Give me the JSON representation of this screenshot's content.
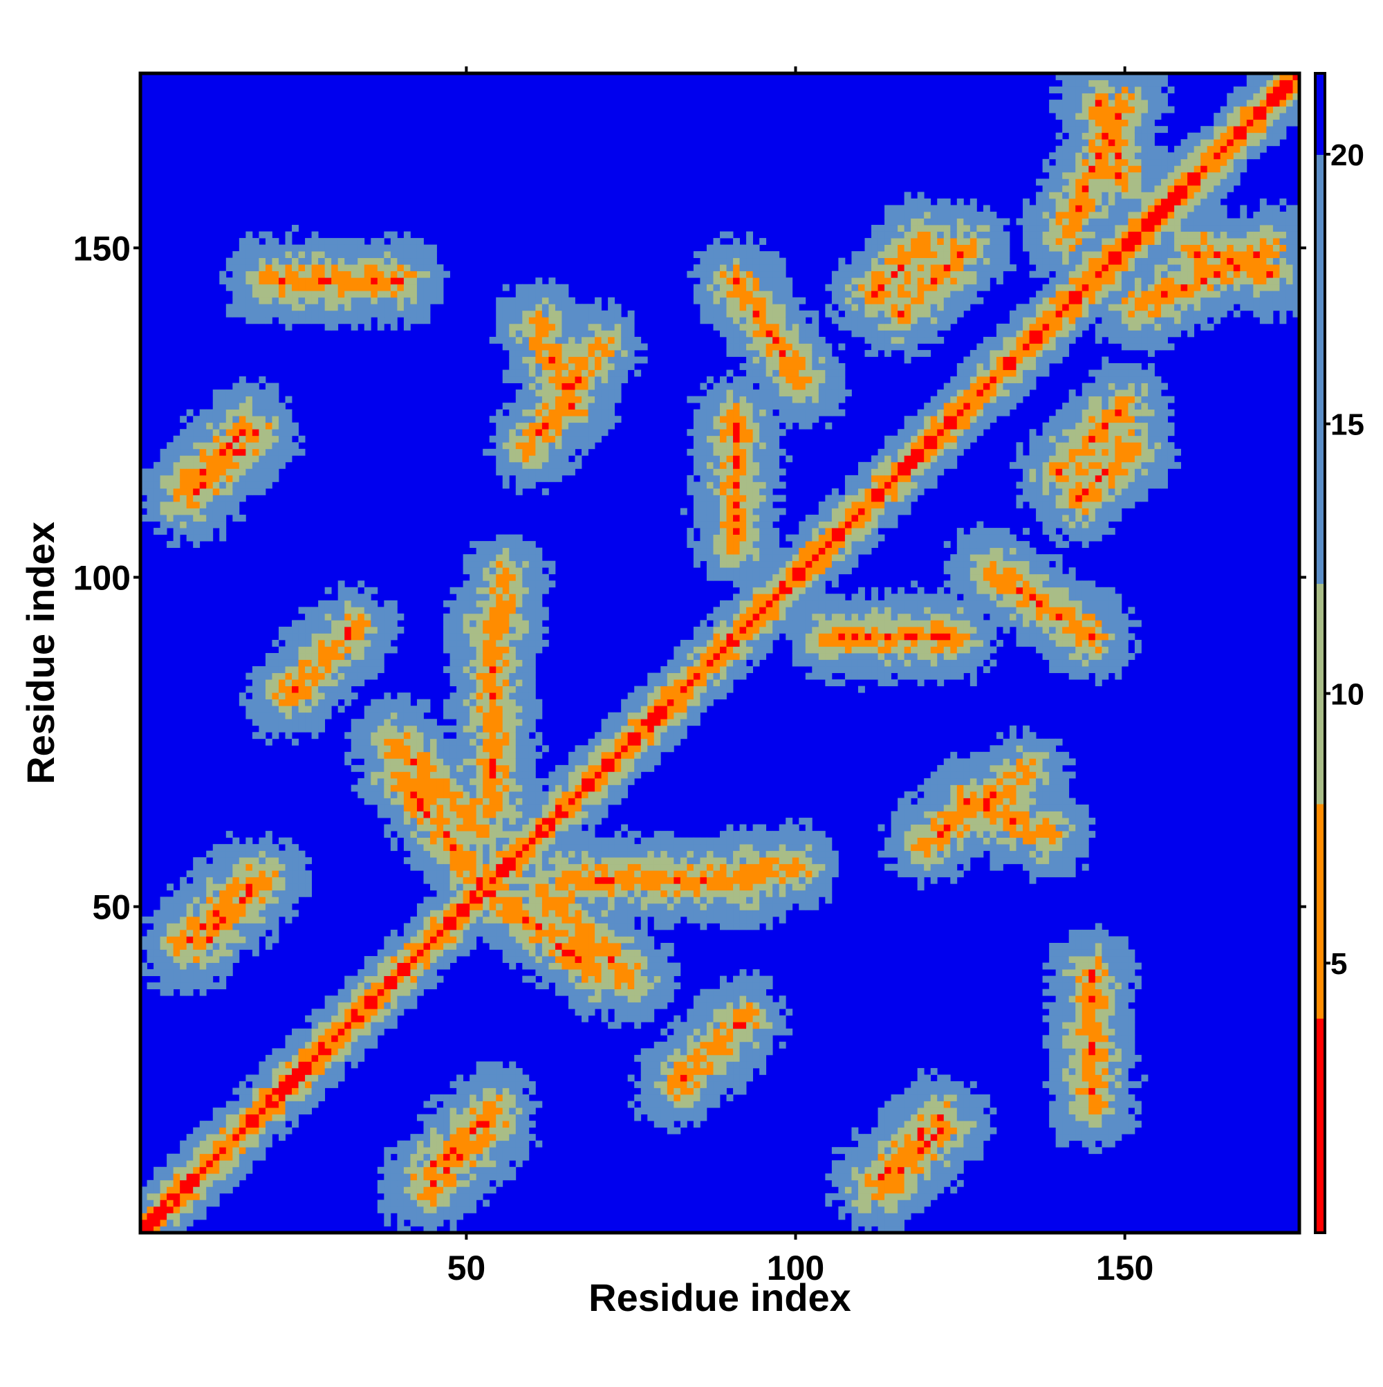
{
  "chart_data": {
    "type": "heatmap",
    "title": "",
    "xlabel": "Residue index",
    "ylabel": "Residue index",
    "n_residues": 176,
    "xlim": [
      0.5,
      176.5
    ],
    "ylim": [
      0.5,
      176.5
    ],
    "x_ticks": [
      50,
      100,
      150
    ],
    "y_ticks": [
      50,
      100,
      150
    ],
    "x_tick_labels": [
      "50",
      "100",
      "150"
    ],
    "y_tick_labels": [
      "50",
      "100",
      "150"
    ],
    "colorbar": {
      "ticks": [
        5,
        10,
        15,
        20
      ],
      "tick_labels": [
        "5",
        "10",
        "15",
        "20"
      ],
      "range": [
        0,
        21.5
      ],
      "position": "right",
      "bands": [
        {
          "from": 0,
          "to": 4.0,
          "color": "#ff0000"
        },
        {
          "from": 4.0,
          "to": 8.0,
          "color": "#ff8c00"
        },
        {
          "from": 8.0,
          "to": 12.0,
          "color": "#a9bd87"
        },
        {
          "from": 12.0,
          "to": 20.0,
          "color": "#5b8ec8"
        },
        {
          "from": 20.0,
          "to": 21.5,
          "color": "#0000ee"
        }
      ]
    },
    "value_description": "pairwise residue distance map, symmetric about the diagonal; low values near the diagonal",
    "contact_segments": [
      {
        "a": [
          7,
          44
        ],
        "b": [
          17,
          54
        ]
      },
      {
        "a": [
          7,
          113
        ],
        "b": [
          17,
          123
        ]
      },
      {
        "a": [
          44,
          9
        ],
        "b": [
          54,
          19
        ]
      },
      {
        "a": [
          82,
          23
        ],
        "b": [
          92,
          33
        ]
      },
      {
        "a": [
          112,
          8
        ],
        "b": [
          122,
          18
        ]
      },
      {
        "a": [
          39,
          75
        ],
        "b": [
          52,
          62
        ]
      },
      {
        "a": [
          54,
          52
        ],
        "b": [
          70,
          40
        ]
      },
      {
        "a": [
          120,
          151
        ],
        "b": [
          112,
          143
        ]
      },
      {
        "a": [
          140,
          116
        ],
        "b": [
          150,
          126
        ]
      },
      {
        "a": [
          146,
          172
        ],
        "b": [
          150,
          160
        ]
      },
      {
        "a": [
          152,
          141
        ],
        "b": [
          172,
          150
        ]
      },
      {
        "a": [
          86,
          54
        ],
        "b": [
          100,
          56
        ]
      },
      {
        "a": [
          91,
          145
        ],
        "b": [
          101,
          130
        ]
      },
      {
        "a": [
          61,
          138
        ],
        "b": [
          66,
          126
        ]
      },
      {
        "a": [
          105,
          91
        ],
        "b": [
          124,
          91
        ]
      },
      {
        "a": [
          54,
          93
        ],
        "b": [
          54,
          65
        ]
      },
      {
        "a": [
          145,
          40
        ],
        "b": [
          145,
          20
        ]
      },
      {
        "a": [
          120,
          60
        ],
        "b": [
          135,
          70
        ]
      }
    ],
    "background_value": 21,
    "grid": false,
    "legend": "none"
  }
}
